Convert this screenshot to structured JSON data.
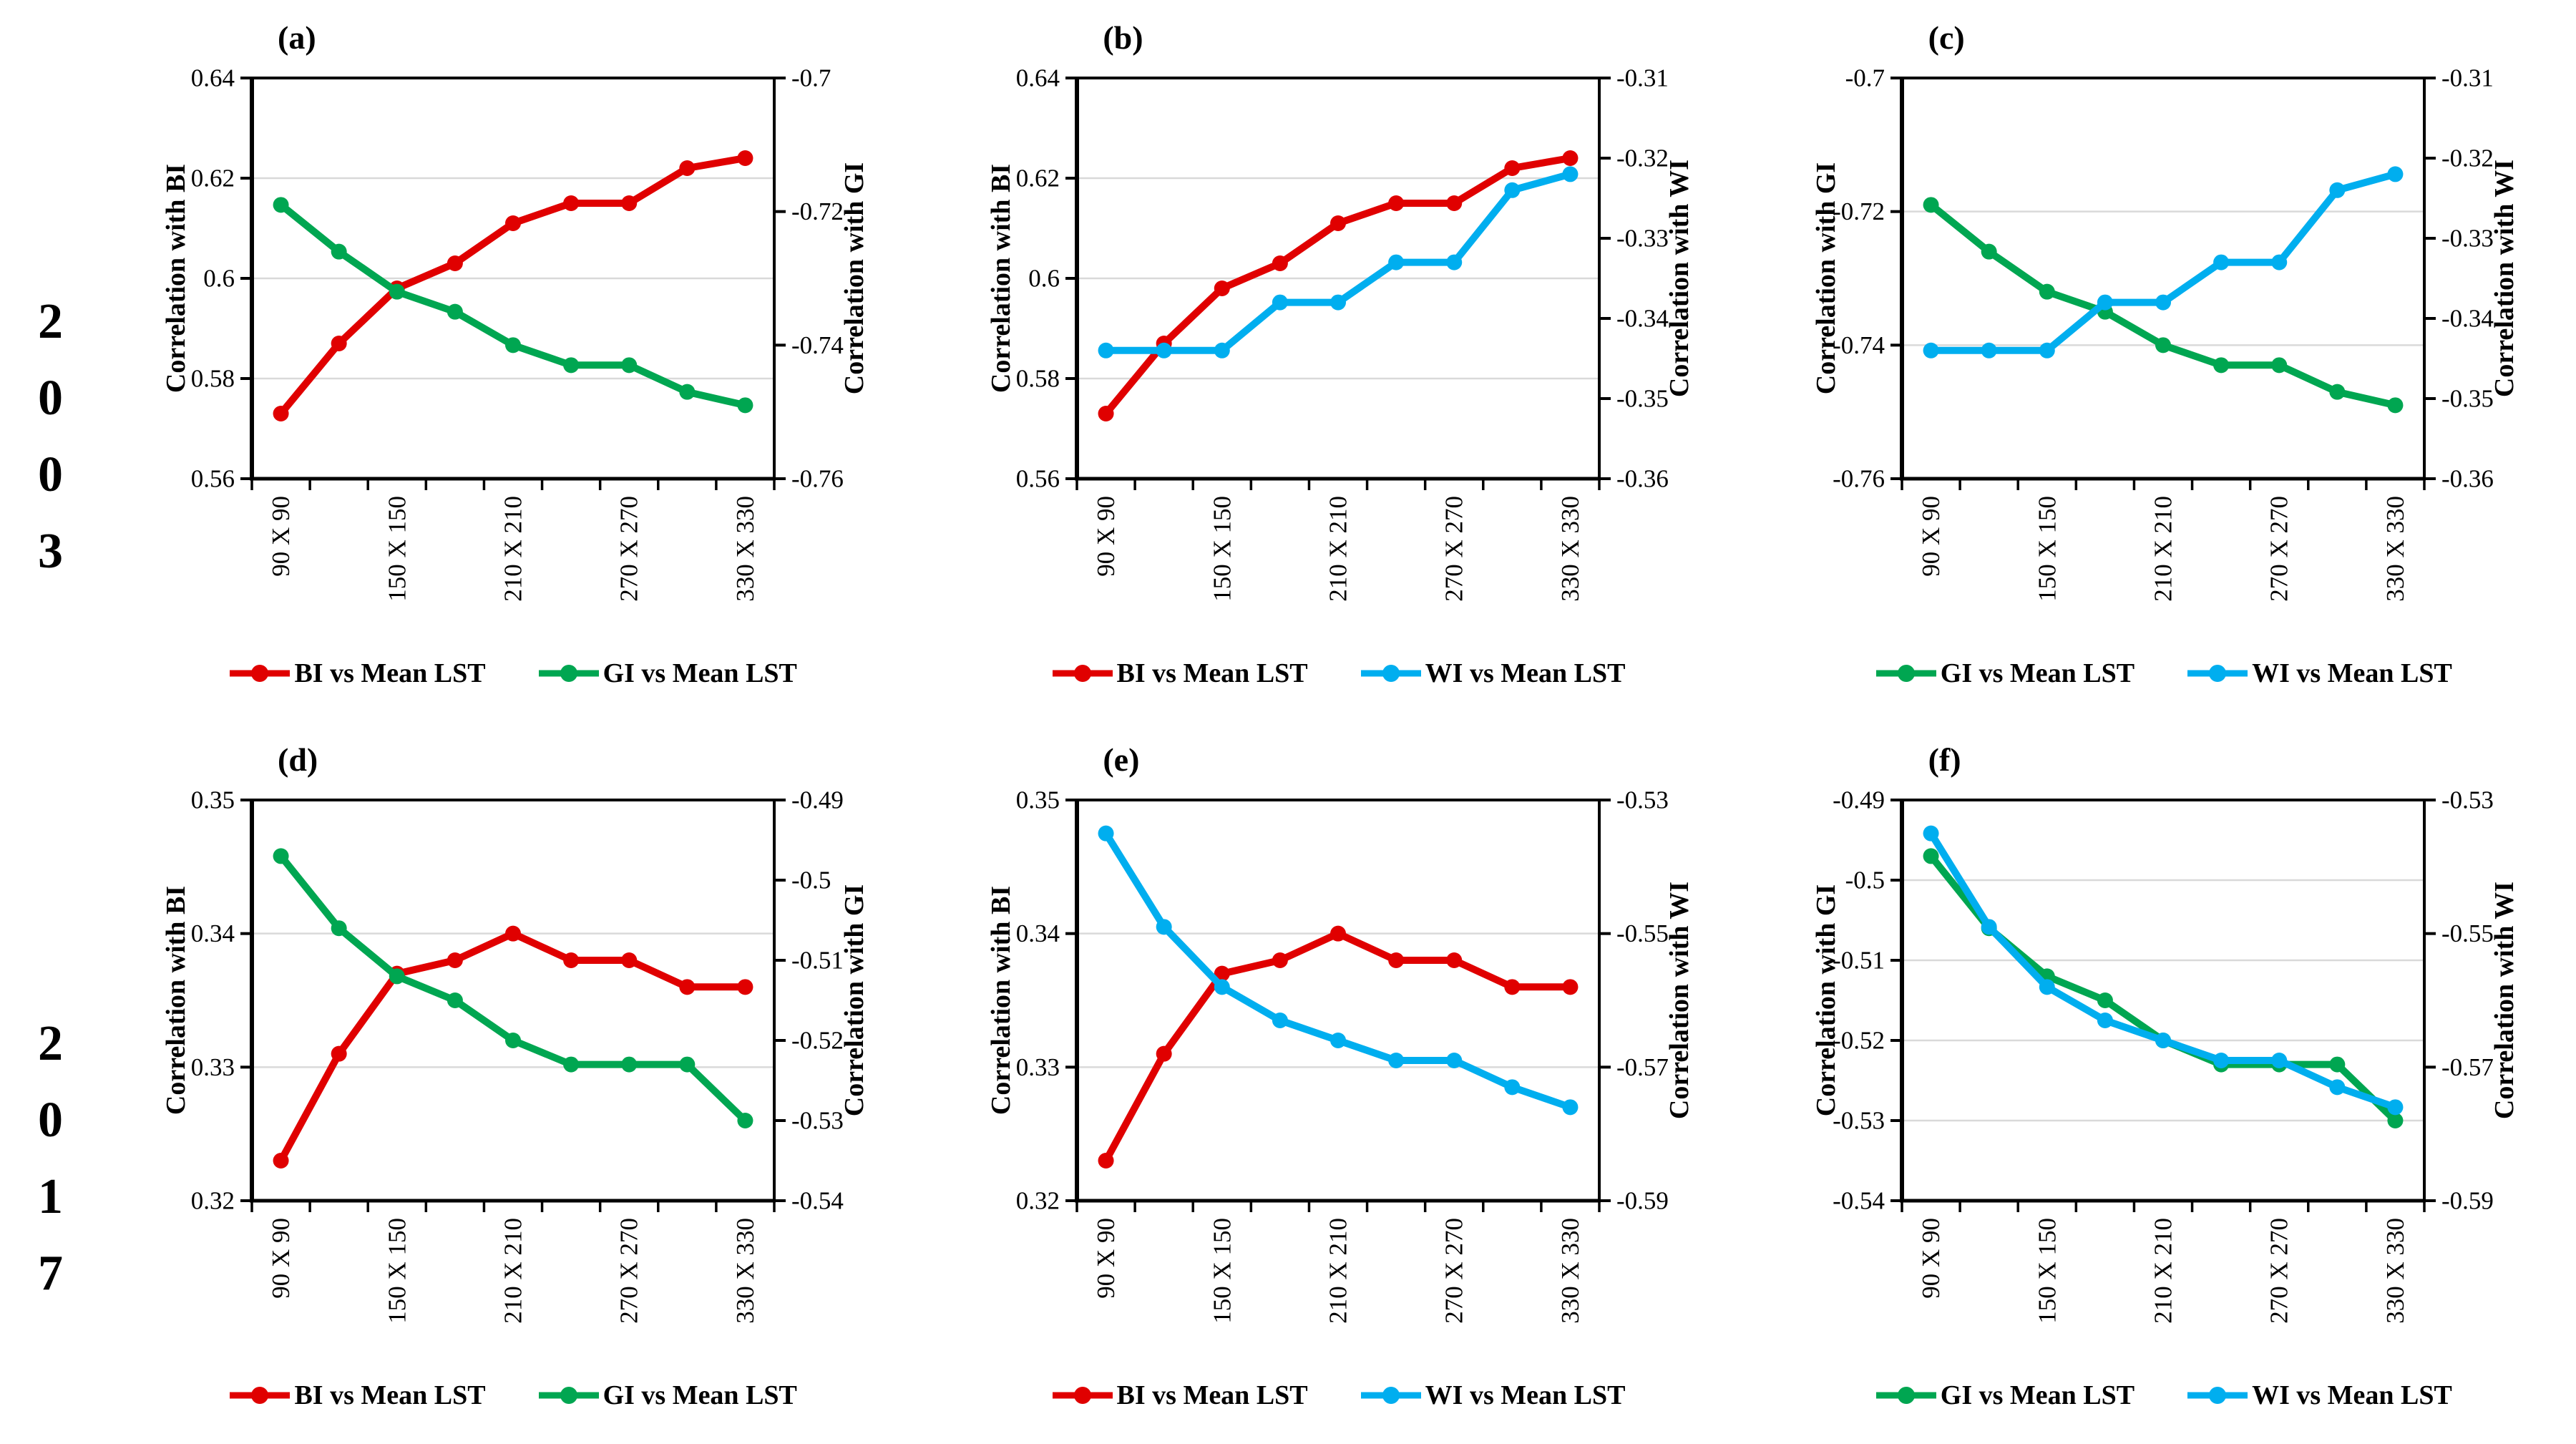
{
  "rows": [
    {
      "year": "2003"
    },
    {
      "year": "2017"
    }
  ],
  "colors": {
    "BI": "#e00000",
    "GI": "#00a651",
    "WI": "#00aeef",
    "grid": "#d9d9d9",
    "axis": "#000000"
  },
  "x_categories": [
    "90 X 90",
    "",
    "150 X 150",
    "",
    "210 X 210",
    "",
    "270 X 270",
    "",
    "330 X 330"
  ],
  "chart_data": [
    {
      "id": "a",
      "label": "(a)",
      "type": "line",
      "x_tick_labels": [
        "90 X 90",
        "",
        "150 X 150",
        "",
        "210 X 210",
        "",
        "270 X 270",
        "",
        "330 X 330"
      ],
      "left_axis": {
        "title": "Correlation with BI",
        "min": 0.56,
        "max": 0.64,
        "ticks": [
          {
            "v": 0.56,
            "label": "0.56"
          },
          {
            "v": 0.58,
            "label": "0.58"
          },
          {
            "v": 0.6,
            "label": "0.6"
          },
          {
            "v": 0.62,
            "label": "0.62"
          },
          {
            "v": 0.64,
            "label": "0.64"
          }
        ]
      },
      "right_axis": {
        "title": "Correlation with GI",
        "min": -0.76,
        "max": -0.7,
        "ticks": [
          {
            "v": -0.7,
            "label": "-0.7"
          },
          {
            "v": -0.72,
            "label": "-0.72"
          },
          {
            "v": -0.74,
            "label": "-0.74"
          },
          {
            "v": -0.76,
            "label": "-0.76"
          }
        ]
      },
      "series": [
        {
          "name": "BI vs Mean LST",
          "color_key": "BI",
          "axis": "left",
          "values": [
            0.573,
            0.587,
            0.598,
            0.603,
            0.611,
            0.615,
            0.615,
            0.622,
            0.624
          ]
        },
        {
          "name": "GI vs Mean LST",
          "color_key": "GI",
          "axis": "right",
          "values": [
            -0.719,
            -0.726,
            -0.732,
            -0.735,
            -0.74,
            -0.743,
            -0.743,
            -0.747,
            -0.749
          ]
        }
      ]
    },
    {
      "id": "b",
      "label": "(b)",
      "type": "line",
      "x_tick_labels": [
        "90 X 90",
        "",
        "150 X 150",
        "",
        "210 X 210",
        "",
        "270 X 270",
        "",
        "330 X 330"
      ],
      "left_axis": {
        "title": "Correlation with BI",
        "min": 0.56,
        "max": 0.64,
        "ticks": [
          {
            "v": 0.56,
            "label": "0.56"
          },
          {
            "v": 0.58,
            "label": "0.58"
          },
          {
            "v": 0.6,
            "label": "0.6"
          },
          {
            "v": 0.62,
            "label": "0.62"
          },
          {
            "v": 0.64,
            "label": "0.64"
          }
        ]
      },
      "right_axis": {
        "title": "Correlation with WI",
        "min": -0.36,
        "max": -0.31,
        "ticks": [
          {
            "v": -0.31,
            "label": "-0.31"
          },
          {
            "v": -0.32,
            "label": "-0.32"
          },
          {
            "v": -0.33,
            "label": "-0.33"
          },
          {
            "v": -0.34,
            "label": "-0.34"
          },
          {
            "v": -0.35,
            "label": "-0.35"
          },
          {
            "v": -0.36,
            "label": "-0.36"
          }
        ]
      },
      "series": [
        {
          "name": "BI vs Mean LST",
          "color_key": "BI",
          "axis": "left",
          "values": [
            0.573,
            0.587,
            0.598,
            0.603,
            0.611,
            0.615,
            0.615,
            0.622,
            0.624
          ]
        },
        {
          "name": "WI vs Mean LST",
          "color_key": "WI",
          "axis": "right",
          "values": [
            -0.344,
            -0.344,
            -0.344,
            -0.338,
            -0.338,
            -0.333,
            -0.333,
            -0.324,
            -0.322
          ]
        }
      ]
    },
    {
      "id": "c",
      "label": "(c)",
      "type": "line",
      "x_tick_labels": [
        "90 X 90",
        "",
        "150 X 150",
        "",
        "210 X 210",
        "",
        "270 X 270",
        "",
        "330 X 330"
      ],
      "left_axis": {
        "title": "Correlation with GI",
        "min": -0.76,
        "max": -0.7,
        "ticks": [
          {
            "v": -0.7,
            "label": "-0.7"
          },
          {
            "v": -0.72,
            "label": "-0.72"
          },
          {
            "v": -0.74,
            "label": "-0.74"
          },
          {
            "v": -0.76,
            "label": "-0.76"
          }
        ]
      },
      "right_axis": {
        "title": "Correlation with WI",
        "min": -0.36,
        "max": -0.31,
        "ticks": [
          {
            "v": -0.31,
            "label": "-0.31"
          },
          {
            "v": -0.32,
            "label": "-0.32"
          },
          {
            "v": -0.33,
            "label": "-0.33"
          },
          {
            "v": -0.34,
            "label": "-0.34"
          },
          {
            "v": -0.35,
            "label": "-0.35"
          },
          {
            "v": -0.36,
            "label": "-0.36"
          }
        ]
      },
      "series": [
        {
          "name": "GI vs Mean LST",
          "color_key": "GI",
          "axis": "left",
          "values": [
            -0.719,
            -0.726,
            -0.732,
            -0.735,
            -0.74,
            -0.743,
            -0.743,
            -0.747,
            -0.749
          ]
        },
        {
          "name": "WI vs Mean LST",
          "color_key": "WI",
          "axis": "right",
          "values": [
            -0.344,
            -0.344,
            -0.344,
            -0.338,
            -0.338,
            -0.333,
            -0.333,
            -0.324,
            -0.322
          ]
        }
      ]
    },
    {
      "id": "d",
      "label": "(d)",
      "type": "line",
      "x_tick_labels": [
        "90 X 90",
        "",
        "150 X 150",
        "",
        "210 X 210",
        "",
        "270 X 270",
        "",
        "330 X 330"
      ],
      "left_axis": {
        "title": "Correlation with BI",
        "min": 0.32,
        "max": 0.35,
        "ticks": [
          {
            "v": 0.32,
            "label": "0.32"
          },
          {
            "v": 0.33,
            "label": "0.33"
          },
          {
            "v": 0.34,
            "label": "0.34"
          },
          {
            "v": 0.35,
            "label": "0.35"
          }
        ]
      },
      "right_axis": {
        "title": "Correlation with GI",
        "min": -0.54,
        "max": -0.49,
        "ticks": [
          {
            "v": -0.49,
            "label": "-0.49"
          },
          {
            "v": -0.5,
            "label": "-0.5"
          },
          {
            "v": -0.51,
            "label": "-0.51"
          },
          {
            "v": -0.52,
            "label": "-0.52"
          },
          {
            "v": -0.53,
            "label": "-0.53"
          },
          {
            "v": -0.54,
            "label": "-0.54"
          }
        ]
      },
      "series": [
        {
          "name": "BI vs Mean LST",
          "color_key": "BI",
          "axis": "left",
          "values": [
            0.323,
            0.331,
            0.337,
            0.338,
            0.34,
            0.338,
            0.338,
            0.336,
            0.336
          ]
        },
        {
          "name": "GI vs Mean LST",
          "color_key": "GI",
          "axis": "right",
          "values": [
            -0.497,
            -0.506,
            -0.512,
            -0.515,
            -0.52,
            -0.523,
            -0.523,
            -0.523,
            -0.53
          ]
        }
      ]
    },
    {
      "id": "e",
      "label": "(e)",
      "type": "line",
      "x_tick_labels": [
        "90 X 90",
        "",
        "150 X 150",
        "",
        "210 X 210",
        "",
        "270 X 270",
        "",
        "330 X 330"
      ],
      "left_axis": {
        "title": "Correlation with BI",
        "min": 0.32,
        "max": 0.35,
        "ticks": [
          {
            "v": 0.32,
            "label": "0.32"
          },
          {
            "v": 0.33,
            "label": "0.33"
          },
          {
            "v": 0.34,
            "label": "0.34"
          },
          {
            "v": 0.35,
            "label": "0.35"
          }
        ]
      },
      "right_axis": {
        "title": "Correlation with WI",
        "min": -0.59,
        "max": -0.53,
        "ticks": [
          {
            "v": -0.53,
            "label": "-0.53"
          },
          {
            "v": -0.55,
            "label": "-0.55"
          },
          {
            "v": -0.57,
            "label": "-0.57"
          },
          {
            "v": -0.59,
            "label": "-0.59"
          }
        ]
      },
      "series": [
        {
          "name": "BI vs Mean LST",
          "color_key": "BI",
          "axis": "left",
          "values": [
            0.323,
            0.331,
            0.337,
            0.338,
            0.34,
            0.338,
            0.338,
            0.336,
            0.336
          ]
        },
        {
          "name": "WI vs Mean LST",
          "color_key": "WI",
          "axis": "right",
          "values": [
            -0.535,
            -0.549,
            -0.558,
            -0.563,
            -0.566,
            -0.569,
            -0.569,
            -0.573,
            -0.576
          ]
        }
      ]
    },
    {
      "id": "f",
      "label": "(f)",
      "type": "line",
      "x_tick_labels": [
        "90 X 90",
        "",
        "150 X 150",
        "",
        "210 X 210",
        "",
        "270 X 270",
        "",
        "330 X 330"
      ],
      "left_axis": {
        "title": "Correlation with GI",
        "min": -0.54,
        "max": -0.49,
        "ticks": [
          {
            "v": -0.49,
            "label": "-0.49"
          },
          {
            "v": -0.5,
            "label": "-0.5"
          },
          {
            "v": -0.51,
            "label": "-0.51"
          },
          {
            "v": -0.52,
            "label": "-0.52"
          },
          {
            "v": -0.53,
            "label": "-0.53"
          },
          {
            "v": -0.54,
            "label": "-0.54"
          }
        ]
      },
      "right_axis": {
        "title": "Correlation with WI",
        "min": -0.59,
        "max": -0.53,
        "ticks": [
          {
            "v": -0.53,
            "label": "-0.53"
          },
          {
            "v": -0.55,
            "label": "-0.55"
          },
          {
            "v": -0.57,
            "label": "-0.57"
          },
          {
            "v": -0.59,
            "label": "-0.59"
          }
        ]
      },
      "series": [
        {
          "name": "GI vs Mean LST",
          "color_key": "GI",
          "axis": "left",
          "values": [
            -0.497,
            -0.506,
            -0.512,
            -0.515,
            -0.52,
            -0.523,
            -0.523,
            -0.523,
            -0.53
          ]
        },
        {
          "name": "WI vs Mean LST",
          "color_key": "WI",
          "axis": "right",
          "values": [
            -0.535,
            -0.549,
            -0.558,
            -0.563,
            -0.566,
            -0.569,
            -0.569,
            -0.573,
            -0.576
          ]
        }
      ]
    }
  ]
}
